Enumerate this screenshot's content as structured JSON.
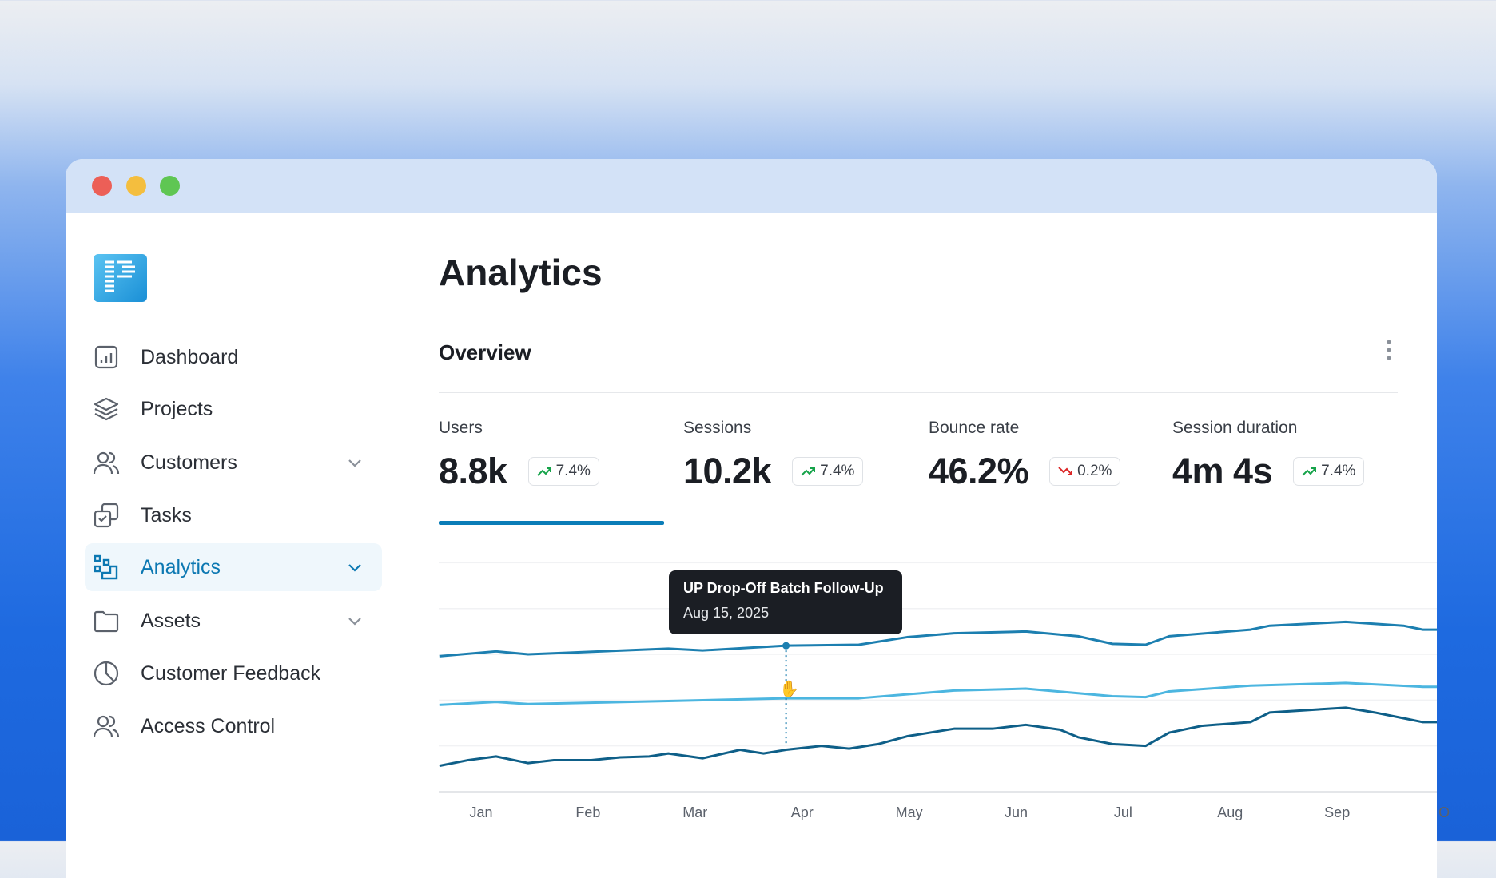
{
  "window": {
    "controls": [
      "close",
      "minimize",
      "maximize"
    ]
  },
  "sidebar": {
    "items": [
      {
        "label": "Dashboard",
        "icon": "bar-chart-icon"
      },
      {
        "label": "Projects",
        "icon": "layers-icon"
      },
      {
        "label": "Customers",
        "icon": "users-icon",
        "expandable": true
      },
      {
        "label": "Tasks",
        "icon": "tasks-icon"
      },
      {
        "label": "Analytics",
        "icon": "analytics-icon",
        "expandable": true,
        "active": true
      },
      {
        "label": "Assets",
        "icon": "folder-icon",
        "expandable": true
      },
      {
        "label": "Customer Feedback",
        "icon": "pie-icon"
      },
      {
        "label": "Access Control",
        "icon": "users-icon"
      }
    ]
  },
  "page": {
    "title": "Analytics",
    "section": "Overview"
  },
  "metrics": [
    {
      "label": "Users",
      "value": "8.8k",
      "change": "7.4%",
      "trend": "up"
    },
    {
      "label": "Sessions",
      "value": "10.2k",
      "change": "7.4%",
      "trend": "up"
    },
    {
      "label": "Bounce rate",
      "value": "46.2%",
      "change": "0.2%",
      "trend": "down"
    },
    {
      "label": "Session duration",
      "value": "4m 4s",
      "change": "7.4%",
      "trend": "up"
    }
  ],
  "colors": {
    "accent": "#0a7db8",
    "up": "#16a34a",
    "down": "#dc2626"
  },
  "tooltip": {
    "title": "UP Drop-Off Batch Follow-Up",
    "date": "Aug 15, 2025"
  },
  "chart_data": {
    "type": "line",
    "categories": [
      "Jan",
      "Feb",
      "Mar",
      "Apr",
      "May",
      "Jun",
      "Jul",
      "Aug",
      "Sep",
      "O"
    ],
    "ylim": [
      0,
      100
    ],
    "grid": true,
    "yticks": [
      20,
      40,
      60,
      80,
      100
    ],
    "hover_x": 2.85,
    "series": [
      {
        "name": "series-1",
        "color": "#1c7fb0",
        "points": [
          [
            -0.39,
            59.2
          ],
          [
            0.14,
            61.3
          ],
          [
            0.44,
            60
          ],
          [
            0.86,
            60.8
          ],
          [
            1.75,
            62.5
          ],
          [
            2.07,
            61.7
          ],
          [
            2.85,
            63.8
          ],
          [
            3.53,
            64.2
          ],
          [
            3.98,
            67.5
          ],
          [
            4.42,
            69.2
          ],
          [
            5.09,
            70
          ],
          [
            5.58,
            67.9
          ],
          [
            5.9,
            64.6
          ],
          [
            6.21,
            64.2
          ],
          [
            6.43,
            67.9
          ],
          [
            7.19,
            70.8
          ],
          [
            7.37,
            72.5
          ],
          [
            8.08,
            74.2
          ],
          [
            8.62,
            72.5
          ],
          [
            8.8,
            70.8
          ],
          [
            8.94,
            70.8
          ]
        ]
      },
      {
        "name": "series-2",
        "color": "#4cb6e0",
        "points": [
          [
            -0.39,
            37.9
          ],
          [
            0.14,
            39.2
          ],
          [
            0.44,
            38.3
          ],
          [
            1.75,
            39.6
          ],
          [
            2.85,
            40.8
          ],
          [
            3.53,
            40.8
          ],
          [
            4.42,
            44.2
          ],
          [
            5.09,
            45
          ],
          [
            5.9,
            41.7
          ],
          [
            6.21,
            41.3
          ],
          [
            6.43,
            43.8
          ],
          [
            7.19,
            46.3
          ],
          [
            8.08,
            47.5
          ],
          [
            8.8,
            45.8
          ],
          [
            8.94,
            45.8
          ]
        ]
      },
      {
        "name": "series-3",
        "color": "#0e5f88",
        "points": [
          [
            -0.39,
            11.3
          ],
          [
            -0.12,
            13.8
          ],
          [
            0.14,
            15.4
          ],
          [
            0.44,
            12.5
          ],
          [
            0.68,
            13.8
          ],
          [
            1.03,
            13.8
          ],
          [
            1.3,
            15
          ],
          [
            1.57,
            15.4
          ],
          [
            1.75,
            16.7
          ],
          [
            2.07,
            14.6
          ],
          [
            2.42,
            18.3
          ],
          [
            2.64,
            16.7
          ],
          [
            2.85,
            18.3
          ],
          [
            3.18,
            20
          ],
          [
            3.44,
            18.8
          ],
          [
            3.71,
            20.8
          ],
          [
            3.98,
            24.2
          ],
          [
            4.42,
            27.5
          ],
          [
            4.78,
            27.5
          ],
          [
            5.09,
            29.2
          ],
          [
            5.41,
            27.1
          ],
          [
            5.58,
            23.8
          ],
          [
            5.9,
            20.8
          ],
          [
            6.21,
            20
          ],
          [
            6.43,
            25.8
          ],
          [
            6.74,
            28.8
          ],
          [
            7.19,
            30.4
          ],
          [
            7.37,
            34.6
          ],
          [
            8.08,
            36.7
          ],
          [
            8.35,
            34.6
          ],
          [
            8.62,
            32.1
          ],
          [
            8.8,
            30.4
          ],
          [
            8.94,
            30.4
          ]
        ]
      }
    ]
  }
}
